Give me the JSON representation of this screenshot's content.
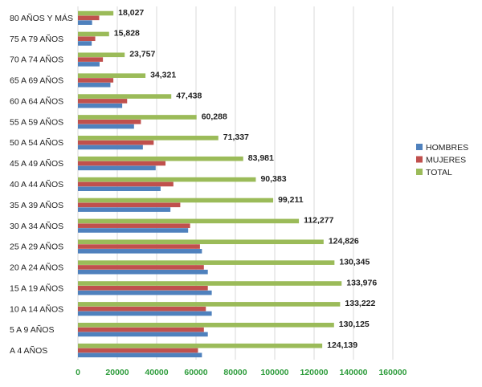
{
  "chart_data": {
    "type": "bar",
    "orientation": "horizontal",
    "title": "",
    "xlabel": "",
    "ylabel": "",
    "xlim": [
      0,
      160000
    ],
    "x_ticks": [
      "0",
      "20000",
      "40000",
      "60000",
      "80000",
      "100000",
      "120000",
      "140000",
      "160000"
    ],
    "grid": true,
    "legend_position": "right",
    "categories": [
      "A 4 AÑOS",
      "5 A 9 AÑOS",
      "10 A 14 AÑOS",
      "15 A 19 AÑOS",
      "20 A 24 AÑOS",
      "25 A 29 AÑOS",
      "30 A 34 AÑOS",
      "35 A 39 AÑOS",
      "40 A 44 AÑOS",
      "45 A 49 AÑOS",
      "50 A 54 AÑOS",
      "55 A 59 AÑOS",
      "60 A 64 AÑOS",
      "65 A 69 AÑOS",
      "70 A 74 AÑOS",
      "75 A 79 AÑOS",
      "80 AÑOS Y MÁS"
    ],
    "series": [
      {
        "name": "HOMBRES",
        "color": "#4f81bd",
        "values": [
          63000,
          66000,
          68000,
          68000,
          66000,
          63000,
          56000,
          47000,
          42000,
          39500,
          33000,
          28500,
          22500,
          16500,
          11000,
          7000,
          7200
        ]
      },
      {
        "name": "MUJERES",
        "color": "#c0504d",
        "values": [
          61000,
          64000,
          65000,
          66000,
          64000,
          62000,
          57000,
          52000,
          48500,
          44500,
          38500,
          32000,
          25000,
          18000,
          12700,
          8800,
          10800
        ]
      },
      {
        "name": "TOTAL",
        "color": "#9bbb59",
        "values": [
          124139,
          130125,
          133222,
          133976,
          130345,
          124826,
          112277,
          99211,
          90383,
          83981,
          71337,
          60288,
          47438,
          34321,
          23757,
          15828,
          18027
        ],
        "labels": [
          "124,139",
          "130,125",
          "133,222",
          "133,976",
          "130,345",
          "124,826",
          "112,277",
          "99,211",
          "90,383",
          "83,981",
          "71,337",
          "60,288",
          "47,438",
          "34,321",
          "23,757",
          "15,828",
          "18,027"
        ]
      }
    ],
    "colors": {
      "grid": "#d9d9d9",
      "tick_label": "#2e9c3c",
      "text": "#222222"
    }
  }
}
